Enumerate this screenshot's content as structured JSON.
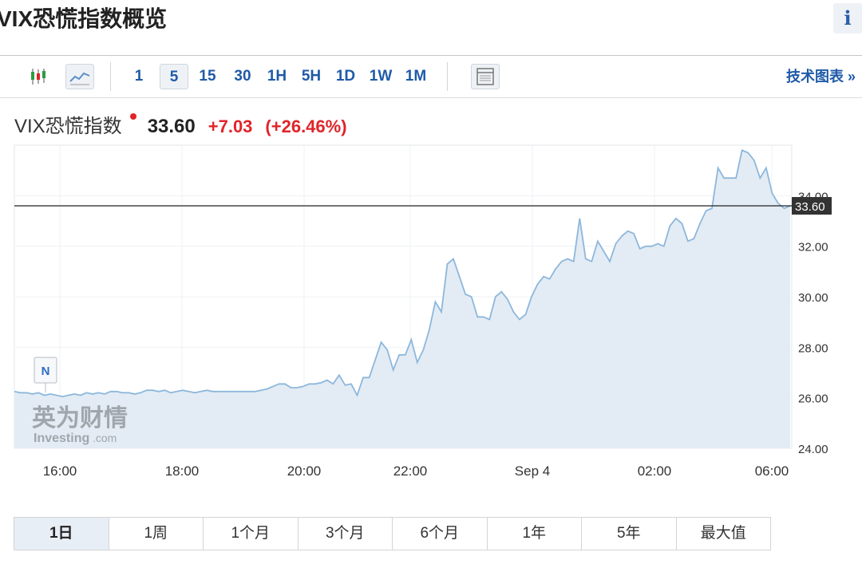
{
  "page": {
    "title": "VIX恐慌指数概览",
    "info_icon": "info-icon"
  },
  "toolbar": {
    "icons": [
      "candlestick-icon",
      "line-chart-icon",
      "table-view-icon"
    ],
    "timeframes": [
      "1",
      "5",
      "15",
      "30",
      "1H",
      "5H",
      "1D",
      "1W",
      "1M"
    ],
    "active_timeframe": "5",
    "tech_link": "技术图表 »"
  },
  "quote": {
    "name": "VIX恐慌指数",
    "price": "33.60",
    "change": "+7.03",
    "change_pct": "(+26.46%)"
  },
  "colors": {
    "up": "#e0242a",
    "link": "#1f5aa8",
    "line": "#8db7dc",
    "area": "#e3ecf4"
  },
  "watermark": {
    "cn": "英为财情",
    "en": "Investing",
    "suffix": ".com"
  },
  "marker": {
    "label": "N"
  },
  "chart_data": {
    "type": "area",
    "x_ticks": [
      "16:00",
      "18:00",
      "20:00",
      "22:00",
      "Sep 4",
      "02:00",
      "06:00"
    ],
    "y_ticks": [
      "24.00",
      "26.00",
      "28.00",
      "30.00",
      "32.00",
      "34.00"
    ],
    "ylim": [
      24,
      36
    ],
    "current_value": 33.6,
    "current_label": "33.60",
    "grid": true,
    "series": [
      {
        "values": [
          26.25,
          26.2,
          26.2,
          26.15,
          26.2,
          26.1,
          26.15,
          26.1,
          26.05,
          26.1,
          26.15,
          26.1,
          26.2,
          26.15,
          26.2,
          26.15,
          26.25,
          26.25,
          26.2,
          26.2,
          26.15,
          26.2,
          26.3,
          26.3,
          26.25,
          26.3,
          26.2,
          26.25,
          26.3,
          26.25,
          26.2,
          26.25,
          26.3,
          26.25,
          26.25,
          26.25,
          26.25,
          26.25,
          26.25,
          26.25,
          26.25,
          26.3,
          26.35,
          26.45,
          26.55,
          26.55,
          26.4,
          26.4,
          26.45,
          26.55,
          26.55,
          26.6,
          26.7,
          26.55,
          26.9,
          26.5,
          26.55,
          26.1,
          26.8,
          26.8,
          27.5,
          28.2,
          27.9,
          27.1,
          27.7,
          27.7,
          28.3,
          27.4,
          27.9,
          28.7,
          29.8,
          29.4,
          31.3,
          31.5,
          30.8,
          30.1,
          30.0,
          29.2,
          29.2,
          29.1,
          30.0,
          30.2,
          29.9,
          29.4,
          29.1,
          29.3,
          30.0,
          30.5,
          30.8,
          30.7,
          31.1,
          31.4,
          31.5,
          31.4,
          33.1,
          31.5,
          31.4,
          32.2,
          31.8,
          31.4,
          32.1,
          32.4,
          32.6,
          32.5,
          31.9,
          32.0,
          32.0,
          32.1,
          32.0,
          32.8,
          33.1,
          32.9,
          32.2,
          32.3,
          32.9,
          33.4,
          33.5,
          35.1,
          34.7,
          34.7,
          34.7,
          35.8,
          35.7,
          35.4,
          34.7,
          35.1,
          34.1,
          33.7,
          33.5,
          33.6
        ]
      }
    ]
  },
  "ranges": [
    "1日",
    "1周",
    "1个月",
    "3个月",
    "6个月",
    "1年",
    "5年",
    "最大值"
  ],
  "active_range": "1日"
}
